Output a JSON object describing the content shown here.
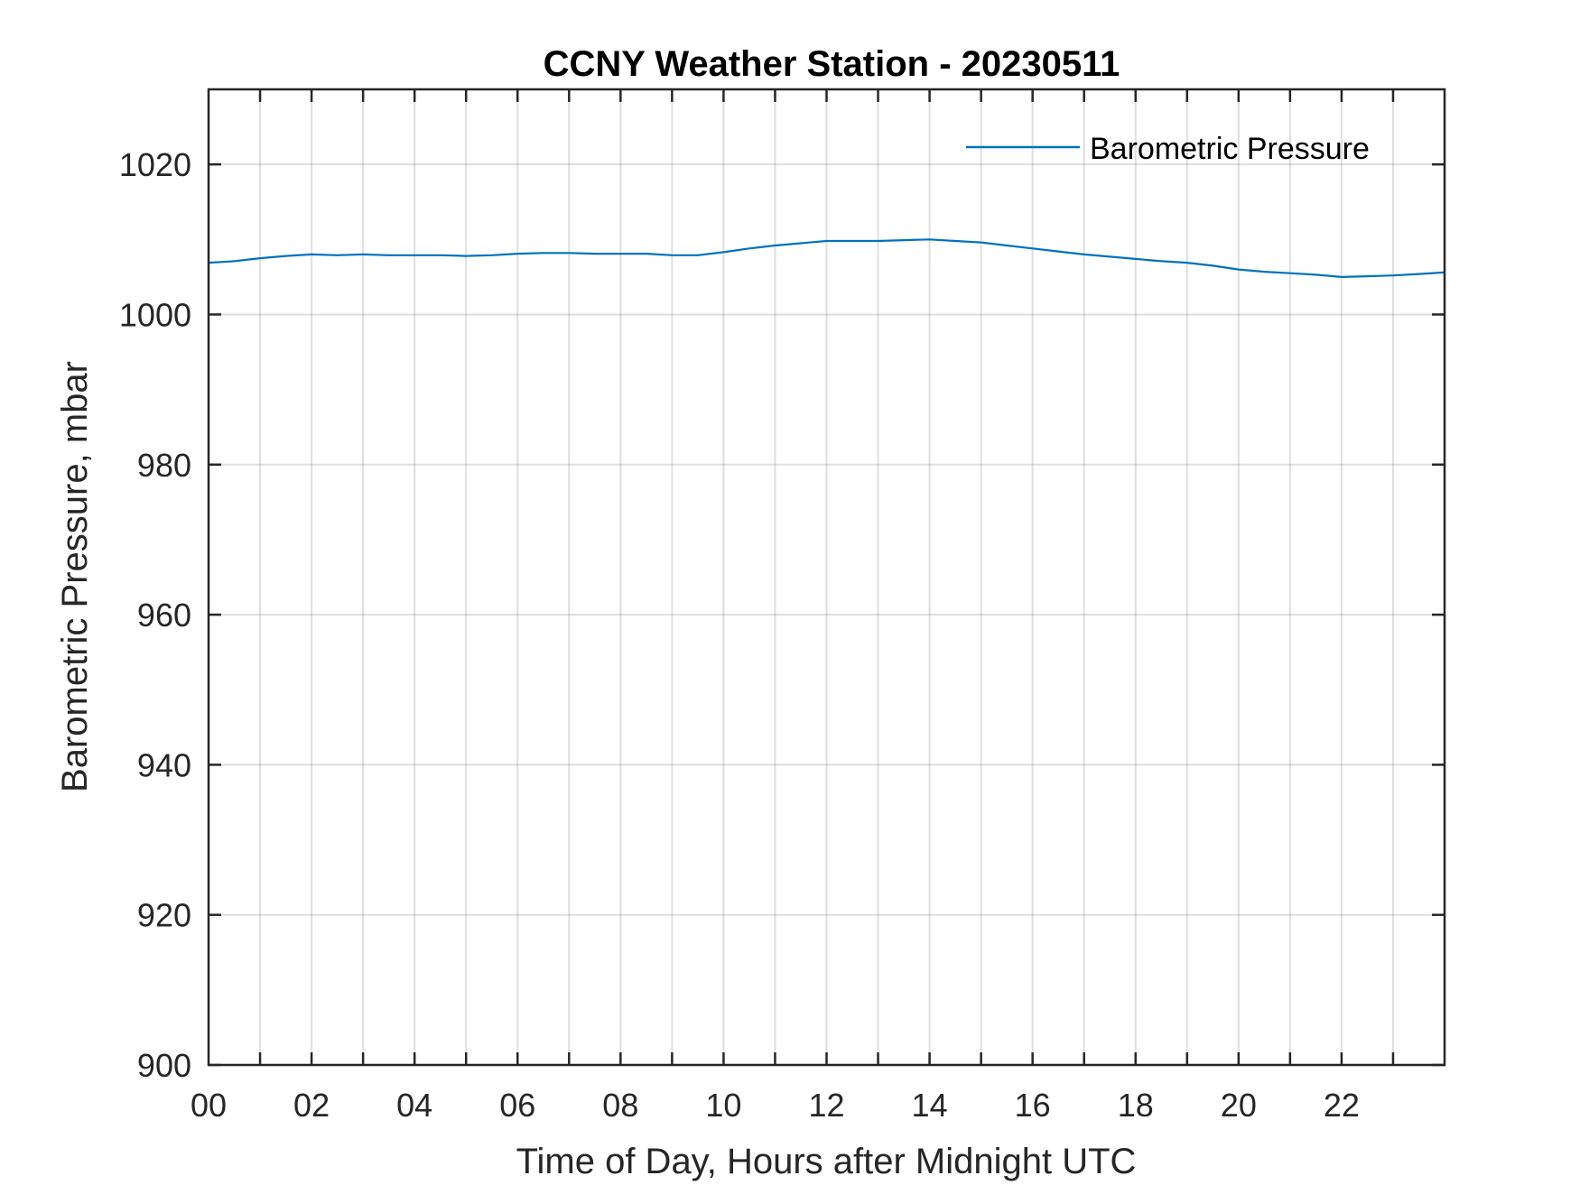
{
  "chart_data": {
    "type": "line",
    "title": "CCNY Weather Station - 20230511",
    "xlabel": "Time of Day, Hours after Midnight UTC",
    "ylabel": "Barometric Pressure, mbar",
    "xlim": [
      0,
      24
    ],
    "ylim": [
      900,
      1030
    ],
    "x_ticks": [
      0,
      2,
      4,
      6,
      8,
      10,
      12,
      14,
      16,
      18,
      20,
      22
    ],
    "x_tick_labels": [
      "00",
      "02",
      "04",
      "06",
      "08",
      "10",
      "12",
      "14",
      "16",
      "18",
      "20",
      "22"
    ],
    "x_minor_grid_step": 1,
    "y_ticks": [
      900,
      920,
      940,
      960,
      980,
      1000,
      1020
    ],
    "y_tick_labels": [
      "900",
      "920",
      "940",
      "960",
      "980",
      "1000",
      "1020"
    ],
    "grid": true,
    "legend_position": "top-right",
    "series": [
      {
        "name": "Barometric Pressure",
        "color": "#0072BD",
        "x": [
          0,
          0.5,
          1,
          1.5,
          2,
          2.5,
          3,
          3.5,
          4,
          4.5,
          5,
          5.5,
          6,
          6.5,
          7,
          7.5,
          8,
          8.5,
          9,
          9.5,
          10,
          10.5,
          11,
          11.5,
          12,
          12.5,
          13,
          13.5,
          14,
          14.5,
          15,
          15.5,
          16,
          16.5,
          17,
          17.5,
          18,
          18.5,
          19,
          19.5,
          20,
          20.5,
          21,
          21.5,
          22,
          22.5,
          23,
          23.5,
          23.98
        ],
        "y": [
          1006.9,
          1007.1,
          1007.5,
          1007.8,
          1008.0,
          1007.9,
          1008.0,
          1007.9,
          1007.9,
          1007.9,
          1007.8,
          1007.9,
          1008.1,
          1008.2,
          1008.2,
          1008.1,
          1008.1,
          1008.1,
          1007.9,
          1007.9,
          1008.3,
          1008.8,
          1009.2,
          1009.5,
          1009.8,
          1009.8,
          1009.8,
          1009.9,
          1010.0,
          1009.8,
          1009.6,
          1009.2,
          1008.8,
          1008.4,
          1008.0,
          1007.7,
          1007.4,
          1007.1,
          1006.9,
          1006.5,
          1006.0,
          1005.7,
          1005.5,
          1005.3,
          1005.0,
          1005.1,
          1005.2,
          1005.4,
          1005.6
        ]
      }
    ]
  }
}
